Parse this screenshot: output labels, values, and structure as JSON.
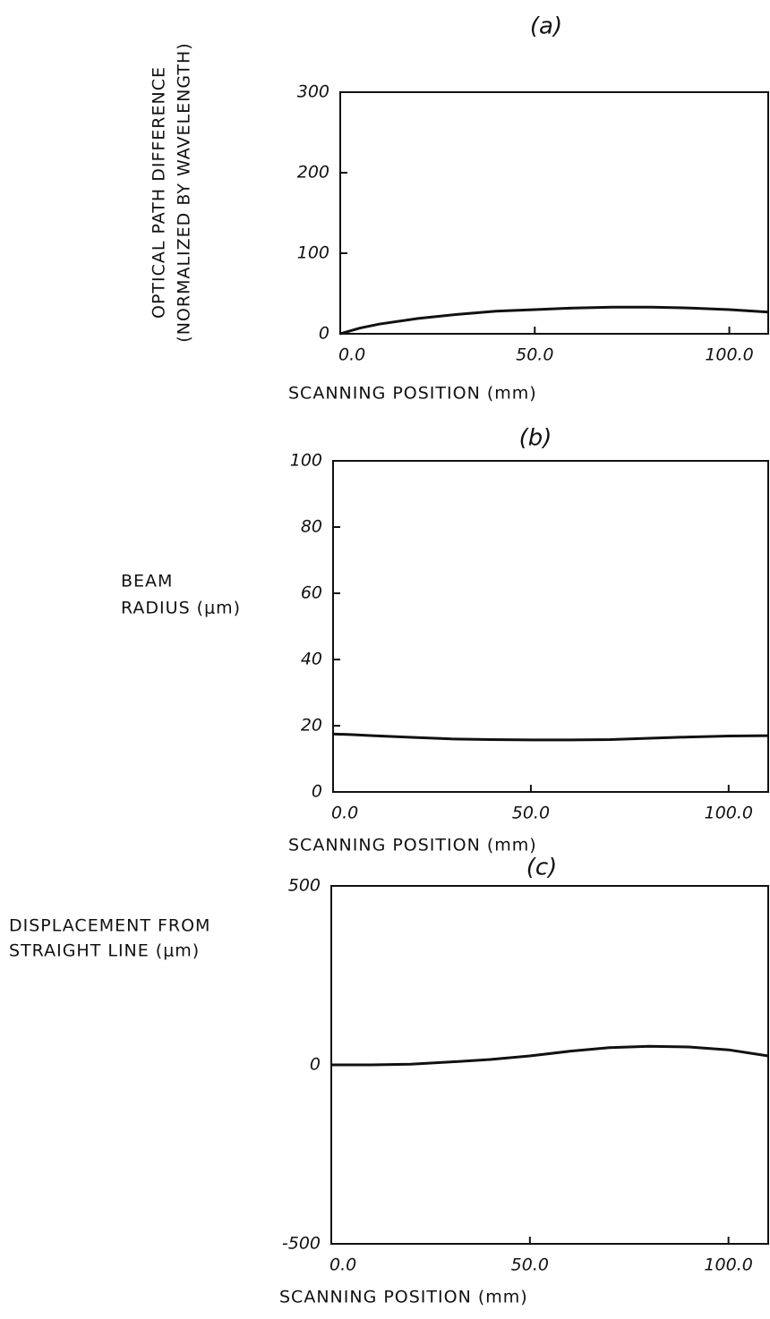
{
  "chart_data": [
    {
      "type": "line",
      "title": "(a)",
      "ylabel": [
        "OPTICAL PATH DIFFERENCE",
        "(NORMALIZED BY WAVELENGTH)"
      ],
      "xlabel": "SCANNING POSITION (mm)",
      "x": [
        0,
        5,
        10,
        20,
        30,
        40,
        50,
        60,
        70,
        80,
        90,
        100,
        110
      ],
      "values": [
        0,
        7,
        12,
        19,
        24,
        28,
        30,
        32,
        33,
        33,
        32,
        30,
        27
      ],
      "color": "#111111",
      "xlim": [
        0,
        110
      ],
      "xticks": [
        {
          "value": 0,
          "label": "0.0"
        },
        {
          "value": 50,
          "label": "50.0"
        },
        {
          "value": 100,
          "label": "100.0"
        }
      ],
      "ylim": [
        0,
        300
      ],
      "yticks": [
        0,
        100,
        200,
        300
      ]
    },
    {
      "type": "line",
      "title": "(b)",
      "ylabel": [
        "BEAM",
        "RADIUS (μm)"
      ],
      "xlabel": "SCANNING POSITION (mm)",
      "x": [
        0,
        5,
        10,
        20,
        30,
        40,
        50,
        60,
        70,
        80,
        90,
        100,
        110
      ],
      "values": [
        17.5,
        17.3,
        17,
        16.5,
        16,
        15.8,
        15.7,
        15.7,
        15.8,
        16.2,
        16.6,
        16.9,
        17
      ],
      "color": "#111111",
      "xlim": [
        0,
        110
      ],
      "xticks": [
        {
          "value": 0,
          "label": "0.0"
        },
        {
          "value": 50,
          "label": "50.0"
        },
        {
          "value": 100,
          "label": "100.0"
        }
      ],
      "ylim": [
        0,
        100
      ],
      "yticks": [
        0,
        20,
        40,
        60,
        80,
        100
      ]
    },
    {
      "type": "line",
      "title": "(c)",
      "ylabel": [
        "DISPLACEMENT FROM",
        "STRAIGHT LINE (μm)"
      ],
      "xlabel": "SCANNING POSITION (mm)",
      "x": [
        0,
        5,
        10,
        20,
        30,
        40,
        50,
        60,
        70,
        80,
        90,
        100,
        110
      ],
      "values": [
        0,
        0,
        0,
        2,
        8,
        15,
        25,
        38,
        48,
        52,
        50,
        42,
        25
      ],
      "color": "#111111",
      "xlim": [
        0,
        110
      ],
      "xticks": [
        {
          "value": 0,
          "label": "0.0"
        },
        {
          "value": 50,
          "label": "50.0"
        },
        {
          "value": 100,
          "label": "100.0"
        }
      ],
      "ylim": [
        -500,
        500
      ],
      "yticks": [
        {
          "value": -500,
          "label": "-500"
        },
        0,
        500
      ]
    }
  ]
}
